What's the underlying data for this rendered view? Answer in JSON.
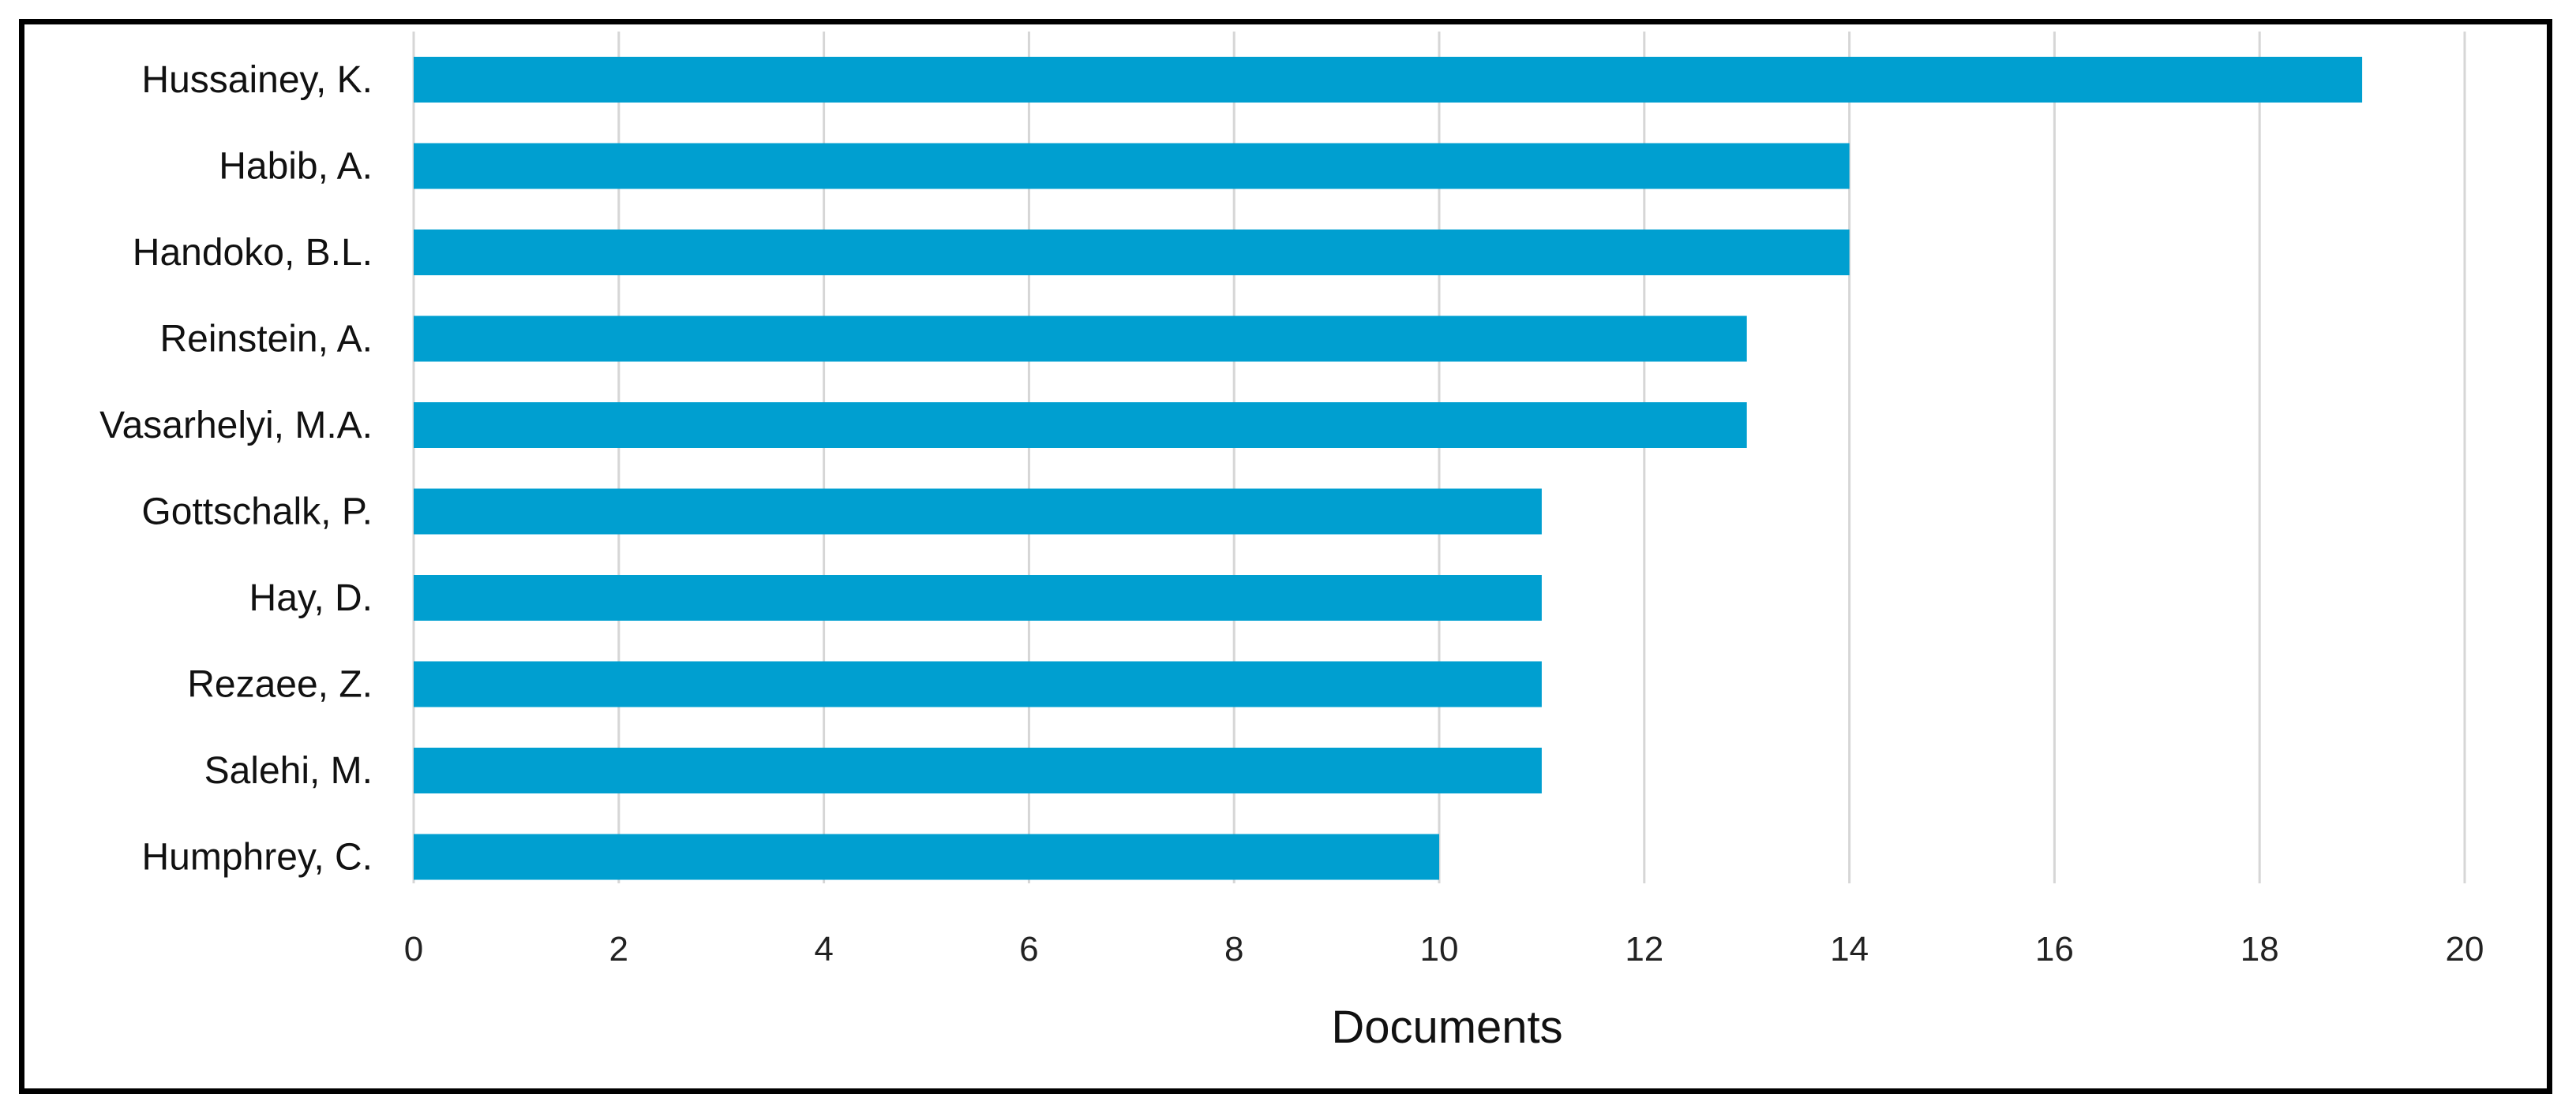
{
  "chart_data": {
    "type": "bar",
    "orientation": "horizontal",
    "categories": [
      "Hussainey, K.",
      "Habib, A.",
      "Handoko, B.L.",
      "Reinstein, A.",
      "Vasarhelyi, M.A.",
      "Gottschalk, P.",
      "Hay, D.",
      "Rezaee, Z.",
      "Salehi, M.",
      "Humphrey, C."
    ],
    "values": [
      19,
      14,
      14,
      13,
      13,
      11,
      11,
      11,
      11,
      10
    ],
    "xlabel": "Documents",
    "ylabel": "",
    "title": "",
    "xlim": [
      0,
      20
    ],
    "xticks": [
      "0",
      "2",
      "4",
      "6",
      "8",
      "10",
      "12",
      "14",
      "16",
      "18",
      "20"
    ],
    "grid": "vertical",
    "legend": "none",
    "bar_color": "#009fd0"
  }
}
